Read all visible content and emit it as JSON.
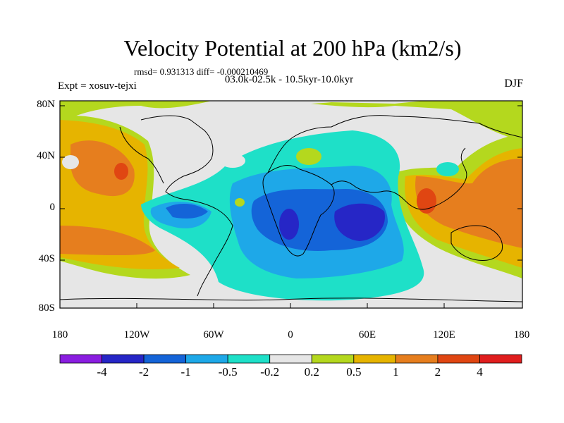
{
  "title": "Velocity Potential at 200 hPa (km2/s)",
  "stats": "rmsd= 0.931313 diff= -0.000210469",
  "period": "03.0k-02.5k - 10.5kyr-10.0kyr",
  "experiment": "Expt = xosuv-tejxi",
  "season": "DJF",
  "lat_ticks": [
    "80N",
    "40N",
    "0",
    "40S",
    "80S"
  ],
  "lon_ticks": [
    "180",
    "120W",
    "60W",
    "0",
    "60E",
    "120E",
    "180"
  ],
  "colorbar": {
    "labels": [
      "-4",
      "-2",
      "-1",
      "-0.5",
      "-0.2",
      "0.2",
      "0.5",
      "1",
      "2",
      "4"
    ],
    "colors": [
      "#8a1ee0",
      "#2626c6",
      "#1464d8",
      "#1ea8e8",
      "#1ee0c8",
      "#e6e6e6",
      "#b4d81e",
      "#e6b400",
      "#e67e1e",
      "#e04612",
      "#e01e1e"
    ]
  }
}
